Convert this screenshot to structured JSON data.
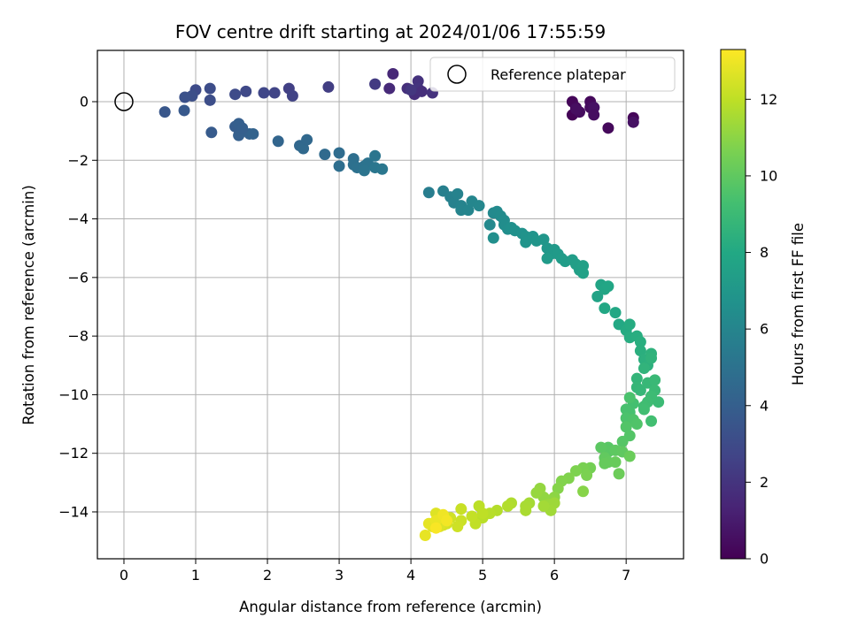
{
  "chart_data": {
    "type": "scatter",
    "title": "FOV centre drift starting at 2024/01/06 17:55:59",
    "xlabel": "Angular distance from reference (arcmin)",
    "ylabel": "Rotation from reference (arcmin)",
    "xlim": [
      -0.37,
      7.8
    ],
    "ylim": [
      -15.6,
      1.75
    ],
    "xticks": [
      0,
      1,
      2,
      3,
      4,
      5,
      6,
      7
    ],
    "yticks": [
      0,
      -2,
      -4,
      -6,
      -8,
      -10,
      -12,
      -14
    ],
    "grid": true,
    "legend": {
      "position": "top-right",
      "entries": [
        "Reference platepar"
      ]
    },
    "reference_point": {
      "x": 0,
      "y": 0
    },
    "colorbar": {
      "label": "Hours from first FF file",
      "min": 0,
      "max": 13.3,
      "ticks": [
        0,
        2,
        4,
        6,
        8,
        10,
        12
      ],
      "colormap": "viridis"
    },
    "points": [
      [
        6.25,
        0.0,
        0.2
      ],
      [
        6.3,
        -0.2,
        0.3
      ],
      [
        6.25,
        -0.45,
        0.1
      ],
      [
        6.35,
        -0.35,
        0.4
      ],
      [
        6.5,
        0.0,
        0.3
      ],
      [
        6.55,
        -0.2,
        0.2
      ],
      [
        6.5,
        -0.2,
        0.4
      ],
      [
        6.55,
        -0.2,
        0.6
      ],
      [
        6.55,
        -0.45,
        0.5
      ],
      [
        6.75,
        -0.9,
        0.3
      ],
      [
        7.1,
        -0.55,
        0.2
      ],
      [
        7.1,
        -0.7,
        0.6
      ],
      [
        6.3,
        -0.25,
        0.5
      ],
      [
        3.75,
        0.95,
        1.5
      ],
      [
        3.7,
        0.45,
        1.6
      ],
      [
        3.95,
        0.45,
        1.8
      ],
      [
        4.1,
        0.7,
        1.9
      ],
      [
        4.05,
        0.25,
        1.7
      ],
      [
        4.1,
        0.45,
        2.0
      ],
      [
        4.15,
        0.35,
        1.8
      ],
      [
        4.3,
        0.3,
        1.9
      ],
      [
        4.0,
        0.4,
        2.1
      ],
      [
        3.5,
        0.6,
        2.3
      ],
      [
        2.85,
        0.5,
        2.4
      ],
      [
        2.3,
        0.45,
        2.5
      ],
      [
        2.35,
        0.2,
        2.6
      ],
      [
        2.1,
        0.3,
        2.7
      ],
      [
        1.95,
        0.3,
        2.8
      ],
      [
        1.7,
        0.35,
        2.9
      ],
      [
        1.55,
        0.25,
        3.0
      ],
      [
        1.2,
        0.45,
        3.1
      ],
      [
        1.2,
        0.05,
        3.15
      ],
      [
        1.0,
        0.4,
        3.0
      ],
      [
        0.95,
        0.2,
        3.2
      ],
      [
        0.85,
        0.15,
        3.3
      ],
      [
        0.57,
        -0.35,
        3.6
      ],
      [
        0.84,
        -0.3,
        3.7
      ],
      [
        1.22,
        -1.05,
        3.8
      ],
      [
        1.55,
        -0.85,
        3.9
      ],
      [
        1.6,
        -0.75,
        4.0
      ],
      [
        1.6,
        -1.15,
        4.05
      ],
      [
        1.75,
        -1.1,
        4.1
      ],
      [
        1.8,
        -1.1,
        4.2
      ],
      [
        1.65,
        -0.9,
        4.0
      ],
      [
        2.15,
        -1.35,
        4.3
      ],
      [
        2.45,
        -1.5,
        4.4
      ],
      [
        2.5,
        -1.6,
        4.5
      ],
      [
        2.55,
        -1.3,
        4.45
      ],
      [
        2.8,
        -1.8,
        4.6
      ],
      [
        3.0,
        -1.75,
        4.7
      ],
      [
        3.0,
        -2.2,
        4.8
      ],
      [
        3.2,
        -1.95,
        4.85
      ],
      [
        3.2,
        -2.15,
        4.9
      ],
      [
        3.25,
        -2.25,
        4.95
      ],
      [
        3.35,
        -2.2,
        5.0
      ],
      [
        3.4,
        -2.1,
        5.05
      ],
      [
        3.35,
        -2.35,
        5.1
      ],
      [
        3.5,
        -1.85,
        5.15
      ],
      [
        3.5,
        -2.25,
        5.2
      ],
      [
        3.6,
        -2.3,
        5.25
      ],
      [
        4.25,
        -3.1,
        5.6
      ],
      [
        4.45,
        -3.05,
        5.7
      ],
      [
        4.55,
        -3.25,
        5.75
      ],
      [
        4.6,
        -3.45,
        5.8
      ],
      [
        4.65,
        -3.15,
        5.85
      ],
      [
        4.7,
        -3.55,
        5.9
      ],
      [
        4.7,
        -3.7,
        5.95
      ],
      [
        4.8,
        -3.7,
        6.0
      ],
      [
        4.85,
        -3.4,
        6.05
      ],
      [
        4.95,
        -3.55,
        6.1
      ],
      [
        5.1,
        -4.2,
        6.2
      ],
      [
        5.15,
        -3.8,
        6.25
      ],
      [
        5.2,
        -3.75,
        6.3
      ],
      [
        5.25,
        -3.9,
        6.35
      ],
      [
        5.3,
        -4.05,
        6.4
      ],
      [
        5.3,
        -4.2,
        6.45
      ],
      [
        5.35,
        -4.35,
        6.5
      ],
      [
        5.15,
        -4.65,
        6.55
      ],
      [
        5.4,
        -4.3,
        6.6
      ],
      [
        5.45,
        -4.4,
        6.65
      ],
      [
        5.55,
        -4.5,
        6.7
      ],
      [
        5.6,
        -4.6,
        6.75
      ],
      [
        5.6,
        -4.8,
        6.8
      ],
      [
        5.7,
        -4.6,
        6.85
      ],
      [
        5.75,
        -4.75,
        6.9
      ],
      [
        5.85,
        -4.7,
        6.95
      ],
      [
        5.9,
        -5.0,
        7.0
      ],
      [
        5.95,
        -5.2,
        7.05
      ],
      [
        6.0,
        -5.05,
        7.1
      ],
      [
        6.05,
        -5.2,
        7.15
      ],
      [
        5.9,
        -5.35,
        7.2
      ],
      [
        6.1,
        -5.35,
        7.25
      ],
      [
        6.15,
        -5.45,
        7.3
      ],
      [
        6.25,
        -5.4,
        7.35
      ],
      [
        6.3,
        -5.55,
        7.4
      ],
      [
        6.35,
        -5.75,
        7.45
      ],
      [
        6.4,
        -5.6,
        7.5
      ],
      [
        6.4,
        -5.85,
        7.55
      ],
      [
        6.6,
        -6.65,
        7.7
      ],
      [
        6.65,
        -6.25,
        7.75
      ],
      [
        6.7,
        -6.4,
        7.8
      ],
      [
        6.75,
        -6.3,
        7.85
      ],
      [
        6.7,
        -7.05,
        7.9
      ],
      [
        6.85,
        -7.2,
        7.95
      ],
      [
        6.9,
        -7.6,
        8.0
      ],
      [
        7.0,
        -7.8,
        8.1
      ],
      [
        7.05,
        -7.6,
        8.15
      ],
      [
        7.05,
        -8.05,
        8.2
      ],
      [
        7.15,
        -8.0,
        8.25
      ],
      [
        7.2,
        -8.2,
        8.3
      ],
      [
        7.2,
        -8.5,
        8.35
      ],
      [
        7.25,
        -8.8,
        8.4
      ],
      [
        7.3,
        -9.0,
        8.45
      ],
      [
        7.35,
        -8.6,
        8.5
      ],
      [
        7.35,
        -8.75,
        8.55
      ],
      [
        7.25,
        -9.1,
        8.6
      ],
      [
        7.15,
        -9.45,
        8.7
      ],
      [
        7.15,
        -9.75,
        8.75
      ],
      [
        7.2,
        -9.85,
        8.8
      ],
      [
        7.3,
        -9.6,
        8.85
      ],
      [
        7.4,
        -9.5,
        8.9
      ],
      [
        7.4,
        -9.85,
        8.95
      ],
      [
        7.45,
        -10.25,
        9.0
      ],
      [
        7.35,
        -10.05,
        9.05
      ],
      [
        7.3,
        -10.25,
        9.1
      ],
      [
        7.25,
        -10.4,
        9.15
      ],
      [
        7.25,
        -10.5,
        9.2
      ],
      [
        7.35,
        -10.9,
        9.25
      ],
      [
        7.1,
        -10.3,
        9.3
      ],
      [
        7.05,
        -10.6,
        9.35
      ],
      [
        7.0,
        -10.5,
        9.4
      ],
      [
        7.05,
        -10.1,
        9.45
      ],
      [
        7.0,
        -10.8,
        9.5
      ],
      [
        7.1,
        -10.85,
        9.55
      ],
      [
        7.15,
        -11.0,
        9.6
      ],
      [
        7.0,
        -11.1,
        9.65
      ],
      [
        7.05,
        -11.4,
        9.7
      ],
      [
        6.95,
        -11.6,
        9.75
      ],
      [
        6.75,
        -11.8,
        9.8
      ],
      [
        6.75,
        -11.95,
        9.85
      ],
      [
        6.65,
        -11.8,
        9.9
      ],
      [
        6.85,
        -11.9,
        9.95
      ],
      [
        6.95,
        -11.95,
        10.0
      ],
      [
        6.7,
        -12.15,
        10.05
      ],
      [
        6.75,
        -12.3,
        10.1
      ],
      [
        6.7,
        -12.35,
        10.15
      ],
      [
        6.85,
        -12.3,
        10.2
      ],
      [
        7.05,
        -12.1,
        10.25
      ],
      [
        6.9,
        -12.7,
        10.3
      ],
      [
        6.5,
        -12.5,
        10.5
      ],
      [
        6.4,
        -12.5,
        10.6
      ],
      [
        6.45,
        -12.75,
        10.65
      ],
      [
        6.3,
        -12.6,
        10.7
      ],
      [
        6.2,
        -12.85,
        10.75
      ],
      [
        6.1,
        -12.95,
        10.8
      ],
      [
        6.05,
        -13.2,
        10.85
      ],
      [
        6.4,
        -13.3,
        10.9
      ],
      [
        6.0,
        -13.5,
        11.0
      ],
      [
        5.95,
        -13.6,
        11.05
      ],
      [
        5.85,
        -13.5,
        11.1
      ],
      [
        5.8,
        -13.2,
        11.15
      ],
      [
        5.75,
        -13.35,
        11.2
      ],
      [
        5.9,
        -13.75,
        11.25
      ],
      [
        5.95,
        -13.75,
        11.3
      ],
      [
        6.0,
        -13.7,
        11.35
      ],
      [
        5.95,
        -13.95,
        11.4
      ],
      [
        5.85,
        -13.8,
        11.45
      ],
      [
        5.65,
        -13.7,
        11.5
      ],
      [
        5.6,
        -13.8,
        11.55
      ],
      [
        5.6,
        -13.95,
        11.6
      ],
      [
        5.4,
        -13.7,
        11.7
      ],
      [
        5.35,
        -13.8,
        11.75
      ],
      [
        5.2,
        -13.95,
        11.8
      ],
      [
        5.1,
        -14.05,
        11.85
      ],
      [
        5.0,
        -14.2,
        11.9
      ],
      [
        4.95,
        -13.8,
        11.95
      ],
      [
        5.0,
        -14.05,
        12.0
      ],
      [
        4.9,
        -14.4,
        12.05
      ],
      [
        4.85,
        -14.15,
        12.1
      ],
      [
        4.7,
        -13.9,
        12.2
      ],
      [
        4.7,
        -14.3,
        12.25
      ],
      [
        4.65,
        -14.5,
        12.3
      ],
      [
        4.55,
        -14.2,
        12.35
      ],
      [
        4.5,
        -14.4,
        12.4
      ],
      [
        4.45,
        -14.45,
        12.5
      ],
      [
        4.4,
        -14.2,
        12.55
      ],
      [
        4.4,
        -14.5,
        12.6
      ],
      [
        4.35,
        -14.05,
        12.65
      ],
      [
        4.3,
        -14.5,
        12.7
      ],
      [
        4.25,
        -14.4,
        12.8
      ],
      [
        4.2,
        -14.8,
        12.85
      ],
      [
        4.35,
        -14.3,
        12.9
      ],
      [
        4.45,
        -14.1,
        13.0
      ],
      [
        4.5,
        -14.3,
        13.1
      ],
      [
        4.35,
        -14.55,
        13.2
      ]
    ]
  }
}
